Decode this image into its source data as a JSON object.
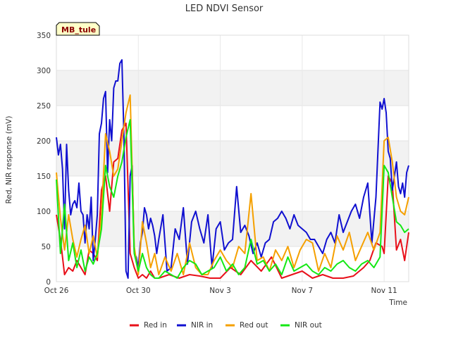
{
  "chart_data": {
    "type": "line",
    "title": "LED NDVI Sensor",
    "xlabel": "Time",
    "ylabel": "Red, NIR response (mV)",
    "site_label": "MB_tule",
    "ylim": [
      0,
      350
    ],
    "yticks": [
      0,
      50,
      100,
      150,
      200,
      250,
      300,
      350
    ],
    "xlim": [
      0,
      17.2
    ],
    "xticks": [
      {
        "label": "Oct 26",
        "x": 0
      },
      {
        "label": "Oct 30",
        "x": 4
      },
      {
        "label": "Nov 3",
        "x": 8
      },
      {
        "label": "Nov 7",
        "x": 12
      },
      {
        "label": "Nov 11",
        "x": 16
      }
    ],
    "x_unit": "days since Oct 26",
    "grid": true,
    "legend_position": "bottom",
    "series": [
      {
        "name": "Red in",
        "color": "#e8101a",
        "x": [
          0.0,
          0.2,
          0.4,
          0.6,
          0.8,
          1.0,
          1.2,
          1.4,
          1.6,
          1.8,
          2.0,
          2.2,
          2.4,
          2.6,
          2.8,
          3.0,
          3.2,
          3.4,
          3.6,
          3.8,
          4.0,
          4.2,
          4.4,
          4.6,
          4.8,
          5.0,
          5.5,
          6.0,
          6.5,
          7.0,
          7.5,
          8.0,
          8.5,
          9.0,
          9.5,
          10.0,
          10.5,
          11.0,
          11.5,
          12.0,
          12.5,
          13.0,
          13.5,
          14.0,
          14.5,
          15.0,
          15.3,
          15.6,
          15.9,
          16.0,
          16.2,
          16.4,
          16.6,
          16.8,
          17.0,
          17.2
        ],
        "y": [
          95,
          60,
          10,
          20,
          15,
          30,
          20,
          10,
          45,
          40,
          30,
          130,
          150,
          100,
          170,
          175,
          215,
          225,
          40,
          20,
          5,
          10,
          5,
          15,
          5,
          5,
          10,
          5,
          10,
          8,
          5,
          5,
          20,
          10,
          30,
          15,
          35,
          5,
          10,
          15,
          5,
          10,
          5,
          5,
          8,
          20,
          30,
          55,
          50,
          40,
          150,
          140,
          45,
          60,
          30,
          70
        ]
      },
      {
        "name": "NIR in",
        "color": "#1010d0",
        "x": [
          0.0,
          0.1,
          0.2,
          0.3,
          0.4,
          0.5,
          0.6,
          0.7,
          0.8,
          0.9,
          1.0,
          1.1,
          1.2,
          1.3,
          1.4,
          1.5,
          1.6,
          1.7,
          1.8,
          1.9,
          2.0,
          2.1,
          2.2,
          2.3,
          2.4,
          2.5,
          2.6,
          2.7,
          2.8,
          2.9,
          3.0,
          3.1,
          3.2,
          3.3,
          3.4,
          3.5,
          3.6,
          3.7,
          3.8,
          3.9,
          4.0,
          4.1,
          4.2,
          4.3,
          4.4,
          4.5,
          4.6,
          4.7,
          4.8,
          4.9,
          5.0,
          5.2,
          5.4,
          5.6,
          5.8,
          6.0,
          6.2,
          6.4,
          6.6,
          6.8,
          7.0,
          7.2,
          7.4,
          7.6,
          7.8,
          8.0,
          8.2,
          8.4,
          8.6,
          8.8,
          9.0,
          9.2,
          9.4,
          9.6,
          9.8,
          10.0,
          10.2,
          10.4,
          10.6,
          10.8,
          11.0,
          11.2,
          11.4,
          11.6,
          11.8,
          12.0,
          12.2,
          12.4,
          12.6,
          12.8,
          13.0,
          13.2,
          13.4,
          13.6,
          13.8,
          14.0,
          14.2,
          14.4,
          14.6,
          14.8,
          15.0,
          15.2,
          15.4,
          15.6,
          15.8,
          15.9,
          16.0,
          16.1,
          16.2,
          16.3,
          16.4,
          16.5,
          16.6,
          16.7,
          16.8,
          16.9,
          17.0,
          17.1,
          17.2
        ],
        "y": [
          205,
          180,
          195,
          160,
          75,
          195,
          130,
          95,
          110,
          115,
          105,
          140,
          100,
          95,
          55,
          95,
          75,
          120,
          30,
          60,
          95,
          210,
          225,
          260,
          270,
          155,
          230,
          200,
          275,
          285,
          285,
          310,
          315,
          205,
          15,
          5,
          150,
          165,
          40,
          35,
          20,
          55,
          70,
          105,
          95,
          75,
          90,
          80,
          65,
          40,
          60,
          95,
          15,
          20,
          75,
          60,
          105,
          25,
          85,
          100,
          75,
          55,
          95,
          20,
          75,
          85,
          45,
          55,
          60,
          135,
          70,
          80,
          65,
          40,
          55,
          35,
          55,
          60,
          85,
          90,
          100,
          90,
          75,
          95,
          80,
          75,
          70,
          60,
          60,
          50,
          40,
          60,
          70,
          55,
          95,
          70,
          85,
          100,
          110,
          90,
          120,
          140,
          55,
          120,
          255,
          245,
          260,
          240,
          185,
          175,
          130,
          150,
          170,
          135,
          125,
          140,
          120,
          155,
          165
        ]
      },
      {
        "name": "Red out",
        "color": "#f5a000",
        "x": [
          0.0,
          0.2,
          0.4,
          0.6,
          0.8,
          1.0,
          1.2,
          1.4,
          1.6,
          1.8,
          2.0,
          2.2,
          2.4,
          2.6,
          2.8,
          3.0,
          3.2,
          3.4,
          3.6,
          3.8,
          4.0,
          4.2,
          4.4,
          4.6,
          4.8,
          5.0,
          5.3,
          5.6,
          5.9,
          6.2,
          6.5,
          6.8,
          7.1,
          7.4,
          7.7,
          8.0,
          8.3,
          8.6,
          8.9,
          9.2,
          9.5,
          9.8,
          10.1,
          10.4,
          10.7,
          11.0,
          11.3,
          11.6,
          11.9,
          12.2,
          12.5,
          12.8,
          13.1,
          13.4,
          13.7,
          14.0,
          14.3,
          14.6,
          14.9,
          15.2,
          15.5,
          15.8,
          16.0,
          16.2,
          16.4,
          16.6,
          16.8,
          17.0,
          17.2
        ],
        "y": [
          155,
          90,
          45,
          95,
          60,
          35,
          60,
          80,
          40,
          65,
          35,
          95,
          210,
          185,
          150,
          160,
          200,
          240,
          265,
          50,
          10,
          85,
          55,
          20,
          40,
          10,
          35,
          15,
          40,
          10,
          55,
          20,
          10,
          10,
          30,
          45,
          30,
          20,
          50,
          40,
          125,
          30,
          35,
          15,
          45,
          30,
          50,
          20,
          45,
          60,
          55,
          15,
          40,
          20,
          65,
          45,
          70,
          30,
          50,
          70,
          45,
          70,
          200,
          205,
          170,
          120,
          100,
          95,
          120
        ]
      },
      {
        "name": "NIR out",
        "color": "#14e814",
        "x": [
          0.0,
          0.2,
          0.4,
          0.6,
          0.8,
          1.0,
          1.2,
          1.4,
          1.6,
          1.8,
          2.0,
          2.2,
          2.4,
          2.6,
          2.8,
          3.0,
          3.2,
          3.4,
          3.6,
          3.8,
          4.0,
          4.2,
          4.4,
          4.6,
          4.8,
          5.0,
          5.3,
          5.6,
          5.9,
          6.2,
          6.5,
          6.8,
          7.1,
          7.4,
          7.7,
          8.0,
          8.3,
          8.6,
          8.9,
          9.2,
          9.5,
          9.8,
          10.1,
          10.4,
          10.7,
          11.0,
          11.3,
          11.6,
          11.9,
          12.2,
          12.5,
          12.8,
          13.1,
          13.4,
          13.7,
          14.0,
          14.3,
          14.6,
          14.9,
          15.2,
          15.5,
          15.8,
          16.0,
          16.2,
          16.4,
          16.6,
          16.8,
          17.0,
          17.2
        ],
        "y": [
          145,
          40,
          110,
          30,
          55,
          20,
          45,
          15,
          35,
          25,
          40,
          75,
          165,
          135,
          120,
          150,
          170,
          205,
          230,
          40,
          15,
          40,
          20,
          10,
          5,
          5,
          15,
          10,
          5,
          20,
          30,
          25,
          10,
          15,
          20,
          35,
          15,
          25,
          10,
          20,
          60,
          25,
          30,
          15,
          25,
          10,
          35,
          15,
          20,
          25,
          15,
          10,
          20,
          15,
          25,
          30,
          20,
          15,
          25,
          30,
          20,
          35,
          165,
          155,
          120,
          85,
          80,
          70,
          75
        ]
      }
    ]
  }
}
